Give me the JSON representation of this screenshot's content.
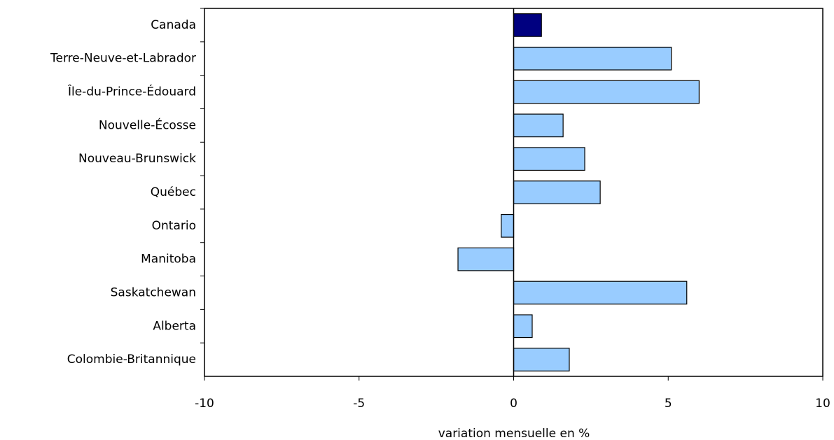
{
  "chart_data": {
    "type": "bar",
    "orientation": "horizontal",
    "x_label": "variation mensuelle en %",
    "categories": [
      "Canada",
      "Terre-Neuve-et-Labrador",
      "Île-du-Prince-Édouard",
      "Nouvelle-Écosse",
      "Nouveau-Brunswick",
      "Québec",
      "Ontario",
      "Manitoba",
      "Saskatchewan",
      "Alberta",
      "Colombie-Britannique"
    ],
    "values": [
      0.9,
      5.1,
      6.0,
      1.6,
      2.3,
      2.8,
      -0.4,
      -1.8,
      5.6,
      0.6,
      1.8
    ],
    "colors": [
      "#000080",
      "#99ccff",
      "#99ccff",
      "#99ccff",
      "#99ccff",
      "#99ccff",
      "#99ccff",
      "#99ccff",
      "#99ccff",
      "#99ccff",
      "#99ccff"
    ],
    "xlim": [
      -10,
      10
    ],
    "xticks": [
      -10,
      -5,
      0,
      5,
      10
    ],
    "grid": false
  }
}
